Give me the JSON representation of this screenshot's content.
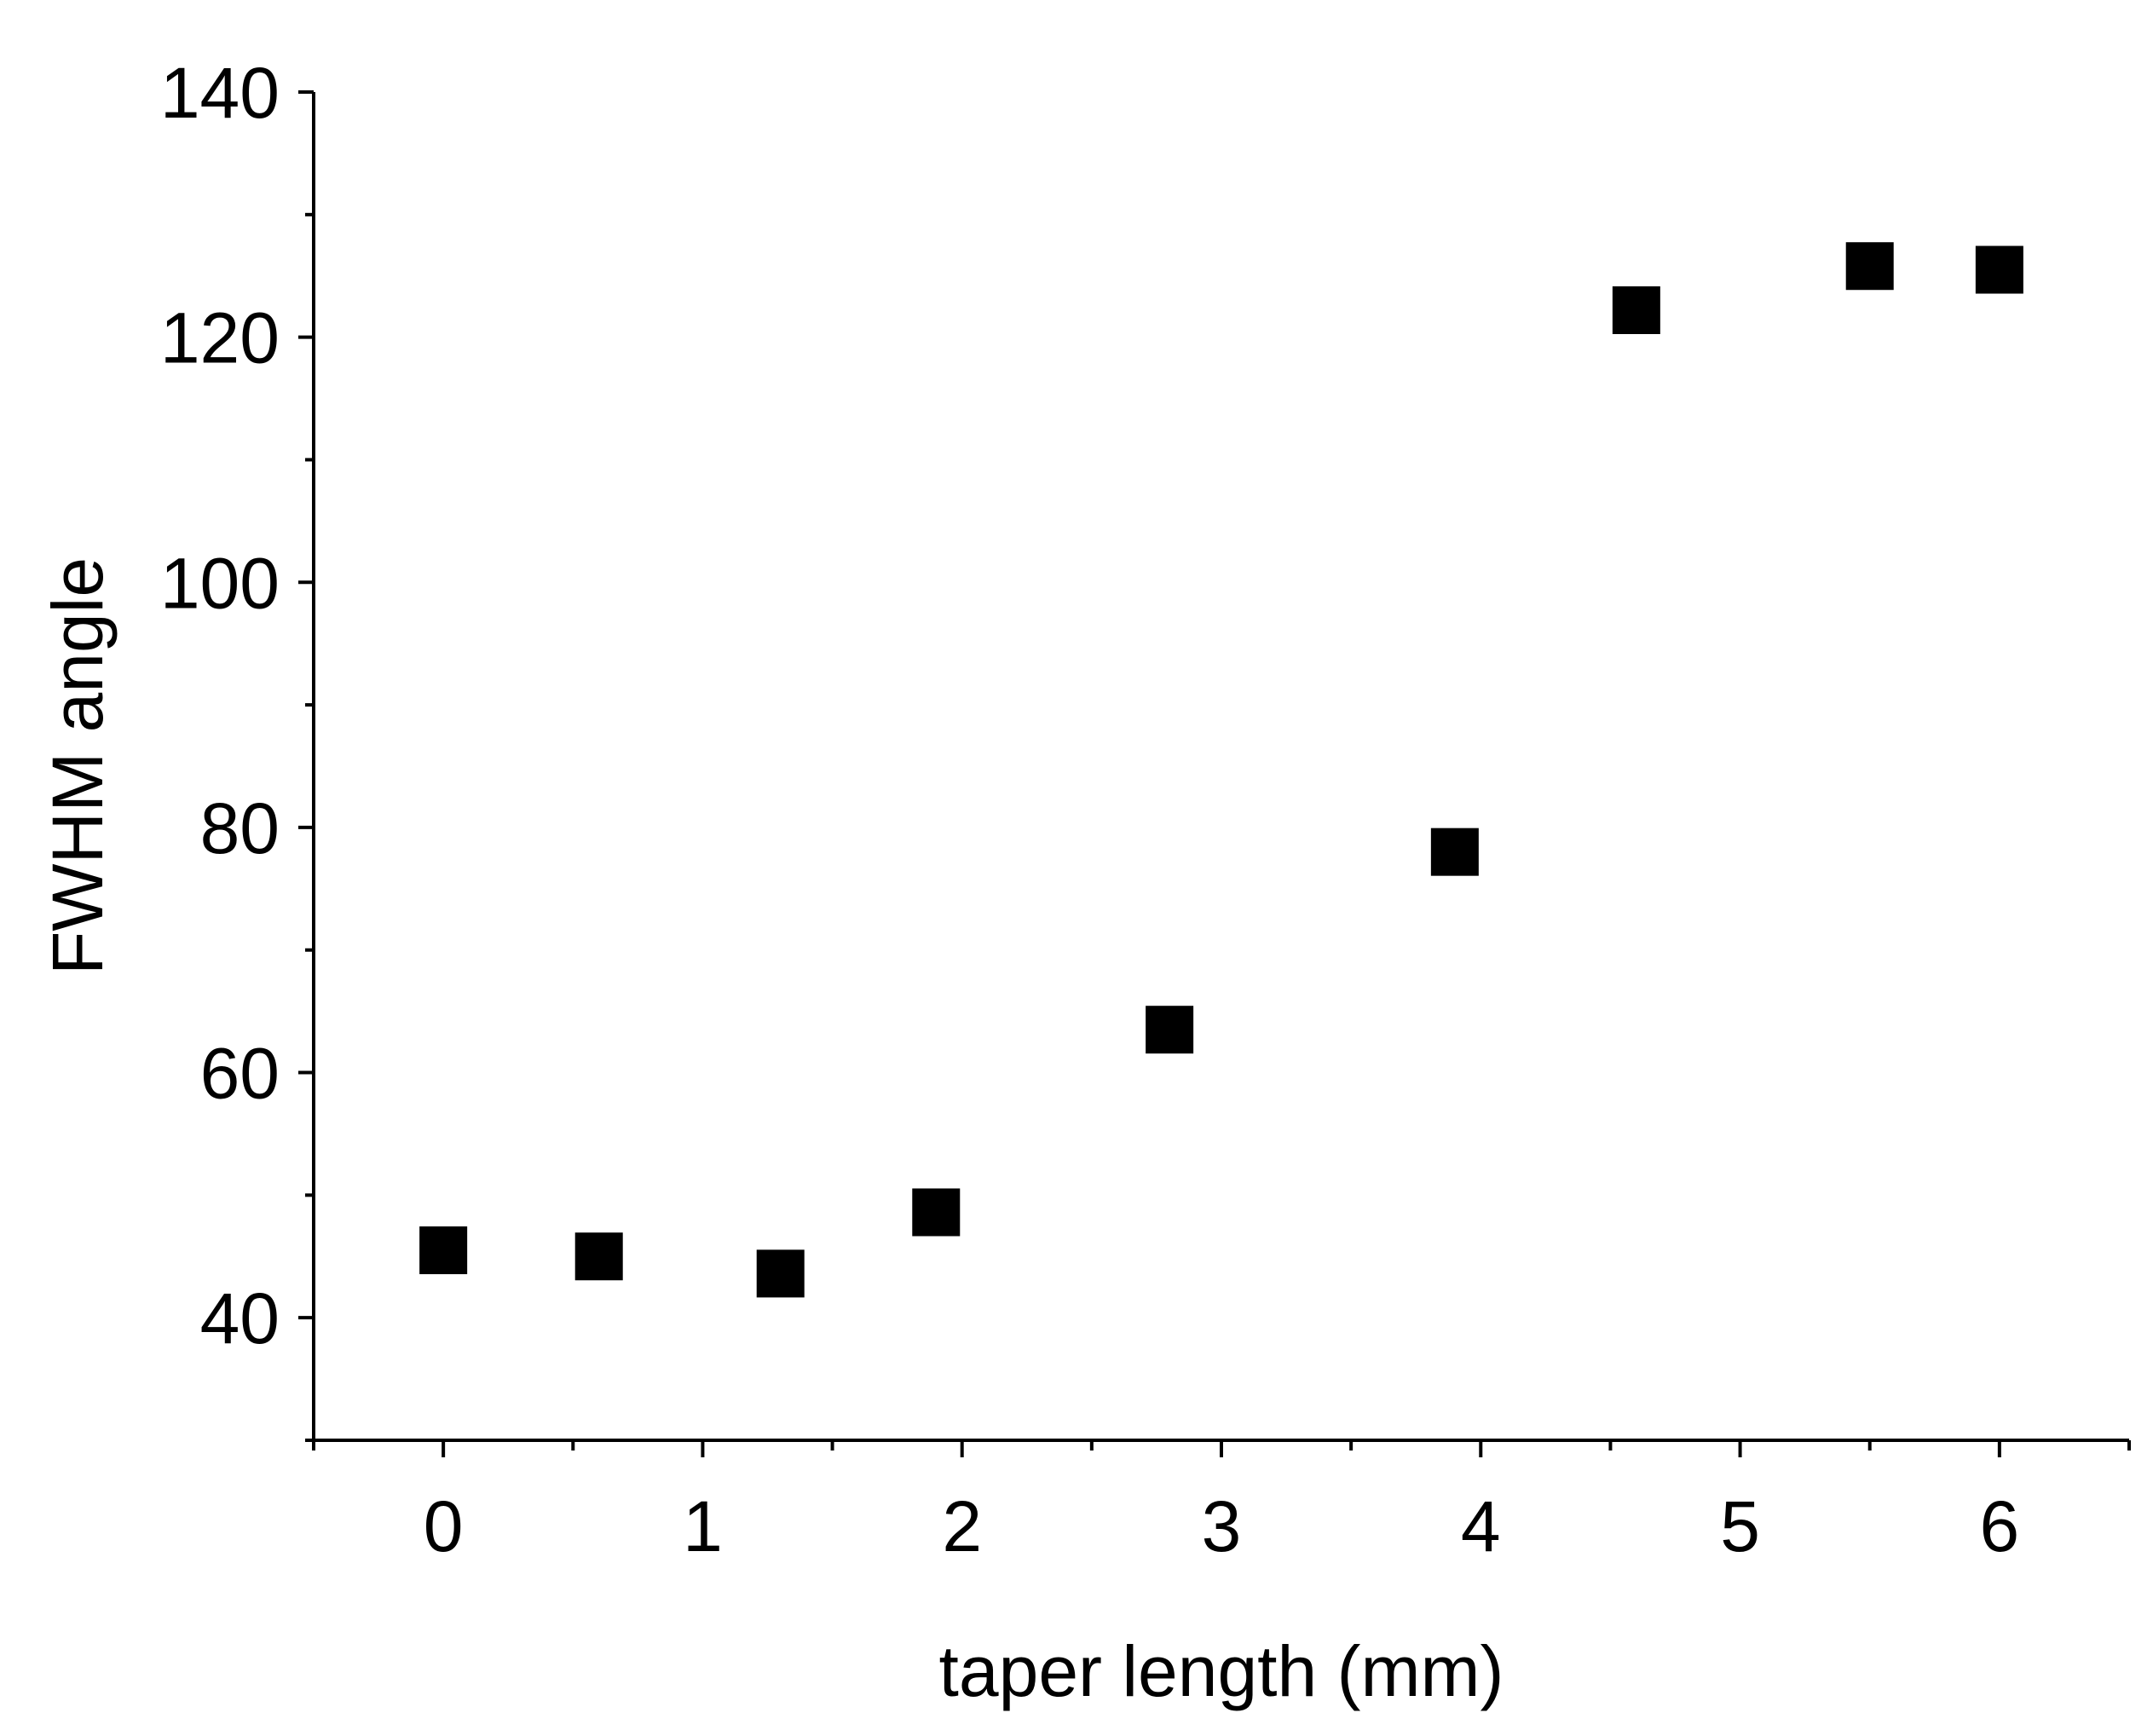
{
  "chart_data": {
    "type": "scatter",
    "title": "",
    "xlabel": "taper length (mm)",
    "ylabel": "FWHM angle",
    "xlim": [
      -0.5,
      6.5
    ],
    "ylim": [
      30,
      140
    ],
    "x_ticks": [
      0,
      1,
      2,
      3,
      4,
      5,
      6
    ],
    "y_ticks": [
      40,
      60,
      80,
      100,
      120,
      140
    ],
    "grid": false,
    "marker": "square",
    "marker_color": "#000000",
    "series": [
      {
        "x": [
          0.0,
          0.6,
          1.3,
          1.9,
          2.8,
          3.9,
          4.6,
          5.5,
          6.0
        ],
        "y": [
          45.5,
          45.0,
          43.6,
          48.6,
          63.5,
          78.0,
          122.2,
          125.8,
          125.5
        ]
      }
    ]
  }
}
